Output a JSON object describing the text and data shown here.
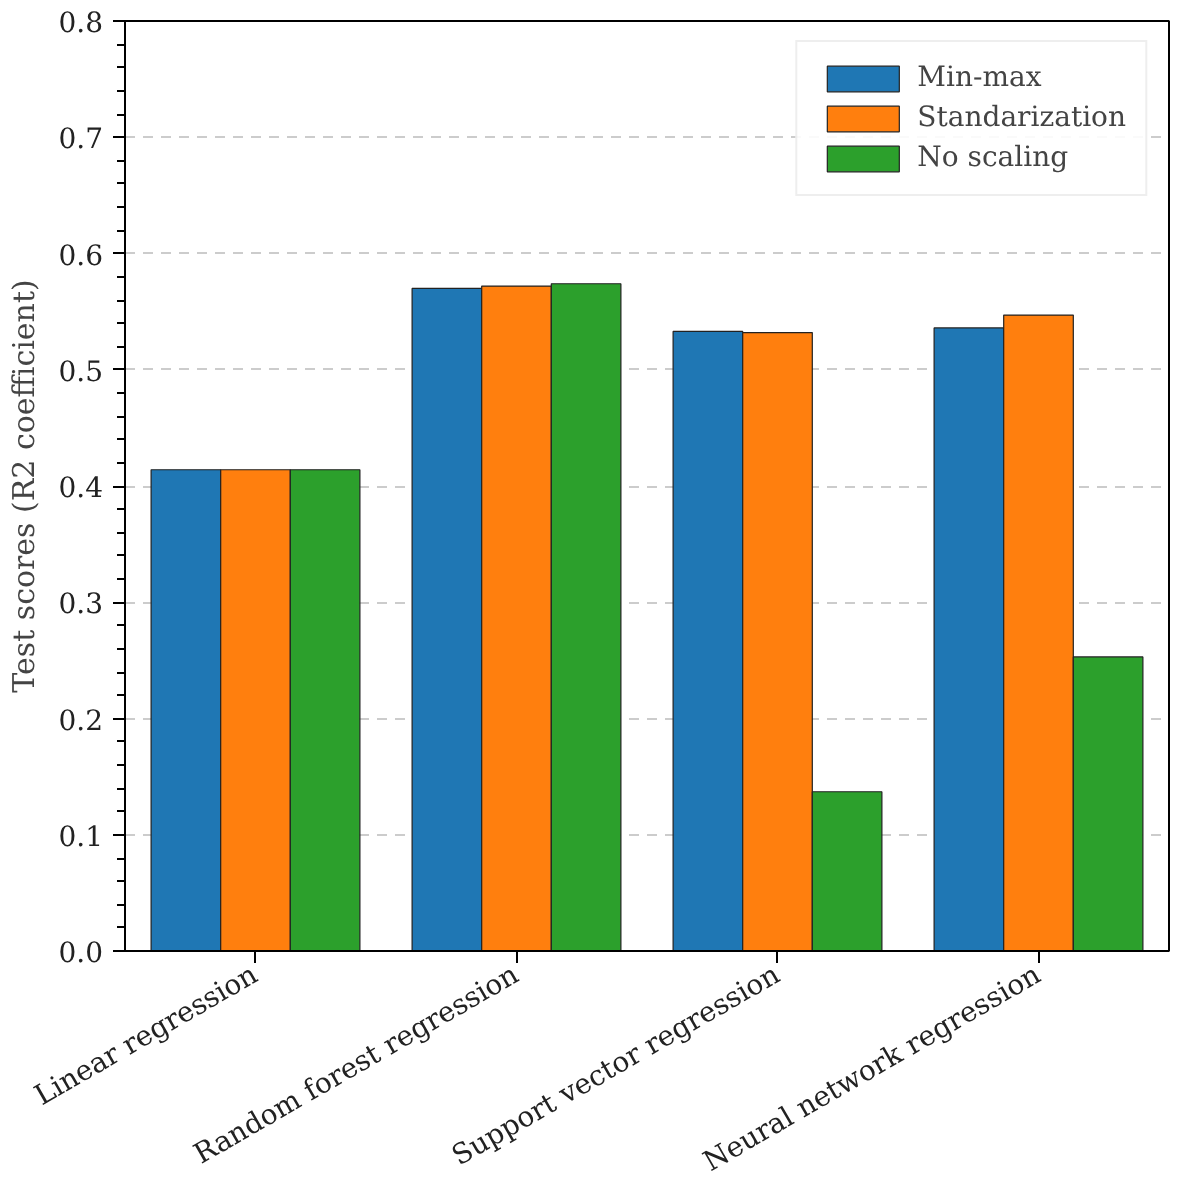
{
  "chart_data": {
    "type": "bar",
    "ylabel": "Test scores (R2 coefficient)",
    "categories": [
      "Linear regression",
      "Random forest regression",
      "Support vector regression",
      "Neural network regression"
    ],
    "series": [
      {
        "name": "Min-max",
        "color": "#1f77b4",
        "values": [
          0.414,
          0.57,
          0.533,
          0.536
        ]
      },
      {
        "name": "Standarization",
        "color": "#ff7f0e",
        "values": [
          0.414,
          0.572,
          0.532,
          0.547
        ]
      },
      {
        "name": "No scaling",
        "color": "#2ca02c",
        "values": [
          0.414,
          0.574,
          0.137,
          0.253
        ]
      }
    ],
    "ylim": [
      0.0,
      0.8
    ],
    "yticks": [
      {
        "value": 0.0,
        "label": "0.0"
      },
      {
        "value": 0.1,
        "label": "0.1"
      },
      {
        "value": 0.2,
        "label": "0.2"
      },
      {
        "value": 0.3,
        "label": "0.3"
      },
      {
        "value": 0.4,
        "label": "0.4"
      },
      {
        "value": 0.5,
        "label": "0.5"
      },
      {
        "value": 0.6,
        "label": "0.6"
      },
      {
        "value": 0.7,
        "label": "0.7"
      },
      {
        "value": 0.8,
        "label": "0.8"
      }
    ],
    "grid": "y",
    "legend": "top right"
  }
}
